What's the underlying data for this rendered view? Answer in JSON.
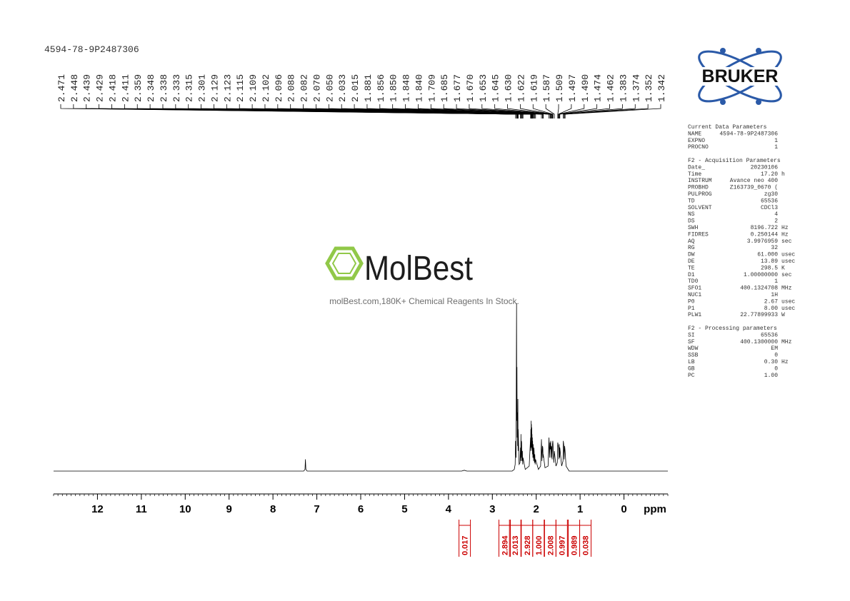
{
  "chart_data": {
    "type": "nmr",
    "title": "4594-78-9P2487306",
    "xlabel": "ppm",
    "xlim": [
      13,
      -1
    ],
    "xticks": [
      12,
      11,
      10,
      9,
      8,
      7,
      6,
      5,
      4,
      3,
      2,
      1,
      0
    ],
    "xminor_step": 0.1,
    "ylim": [
      0,
      100
    ],
    "color": "#000000",
    "series": [
      {
        "x": [
          13,
          7.3,
          7.27,
          7.26,
          7.25,
          7.22,
          3.7,
          3.64,
          3.58,
          2.55,
          2.5,
          2.48,
          2.471,
          2.46,
          2.448,
          2.443,
          2.439,
          2.434,
          2.429,
          2.424,
          2.418,
          2.414,
          2.411,
          2.39,
          2.37,
          2.359,
          2.353,
          2.348,
          2.343,
          2.338,
          2.333,
          2.325,
          2.315,
          2.308,
          2.301,
          2.25,
          2.16,
          2.129,
          2.126,
          2.123,
          2.119,
          2.115,
          2.112,
          2.109,
          2.105,
          2.102,
          2.099,
          2.096,
          2.092,
          2.088,
          2.085,
          2.082,
          2.076,
          2.07,
          2.06,
          2.05,
          2.04,
          2.033,
          2.024,
          2.015,
          1.95,
          1.9,
          1.881,
          1.87,
          1.856,
          1.85,
          1.848,
          1.844,
          1.84,
          1.8,
          1.73,
          1.709,
          1.697,
          1.685,
          1.677,
          1.67,
          1.662,
          1.653,
          1.645,
          1.638,
          1.63,
          1.622,
          1.619,
          1.6,
          1.587,
          1.55,
          1.52,
          1.509,
          1.497,
          1.49,
          1.482,
          1.474,
          1.468,
          1.462,
          1.42,
          1.39,
          1.383,
          1.374,
          1.363,
          1.352,
          1.342,
          1.32,
          1.25,
          -1
        ],
        "values": [
          0,
          0,
          1,
          7,
          1,
          0,
          0,
          0.5,
          0,
          0,
          1,
          4,
          18,
          8,
          100,
          30,
          62,
          20,
          35,
          15,
          43,
          12,
          25,
          4,
          5,
          14,
          6,
          22,
          8,
          18,
          17,
          6,
          12,
          4,
          8,
          1,
          3,
          20,
          12,
          25,
          14,
          30,
          15,
          28,
          14,
          26,
          13,
          22,
          12,
          20,
          10,
          18,
          8,
          16,
          6,
          14,
          5,
          10,
          4,
          7,
          1,
          3,
          19,
          6,
          15,
          14,
          13,
          8,
          10,
          2,
          3,
          20,
          8,
          17,
          13,
          18,
          8,
          15,
          14,
          7,
          16,
          18,
          17,
          5,
          12,
          3,
          5,
          17,
          15,
          14,
          7,
          16,
          8,
          14,
          3,
          6,
          18,
          16,
          7,
          15,
          12,
          3,
          0,
          0
        ]
      }
    ],
    "peaks": [
      2.471,
      2.448,
      2.439,
      2.429,
      2.418,
      2.411,
      2.359,
      2.348,
      2.338,
      2.333,
      2.315,
      2.301,
      2.129,
      2.123,
      2.115,
      2.109,
      2.102,
      2.096,
      2.088,
      2.082,
      {
        "value": 2.07,
        "label": "2.070"
      },
      {
        "value": 2.05,
        "label": "2.050"
      },
      2.033,
      2.015,
      1.881,
      1.856,
      {
        "value": 1.85,
        "label": "1.850"
      },
      1.848,
      {
        "value": 1.84,
        "label": "1.840"
      },
      1.709,
      1.685,
      1.677,
      {
        "value": 1.67,
        "label": "1.670"
      },
      1.653,
      1.645,
      {
        "value": 1.63,
        "label": "1.630"
      },
      1.622,
      1.619,
      1.587,
      1.509,
      1.497,
      {
        "value": 1.49,
        "label": "1.490"
      },
      1.474,
      1.462,
      1.383,
      1.374,
      1.352,
      1.342
    ],
    "integrals": {
      "color": "#cc0000",
      "x": [
        3.63,
        2.72,
        2.48,
        2.21,
        1.95,
        1.68,
        1.42,
        1.14,
        0.88
      ],
      "values": [
        0.017,
        2.894,
        2.013,
        2.928,
        1,
        2.008,
        0.997,
        0.989,
        0.038
      ],
      "value_labels": [
        "0.017",
        "2.894",
        "2.013",
        "2.928",
        "1.000",
        "2.008",
        "0.997",
        "0.989",
        "0.038"
      ]
    }
  },
  "logo": "BRUKER",
  "watermark": {
    "brand": "MolBest",
    "tagline": "molBest.com,180K+ Chemical Reagents In Stock."
  },
  "parameters": {
    "sections": [
      {
        "heading": "Current Data Parameters",
        "rows": [
          [
            "NAME",
            "4594-78-9P2487306"
          ],
          [
            "EXPNO",
            "1"
          ],
          [
            "PROCNO",
            "1"
          ]
        ]
      },
      {
        "heading": "F2 - Acquisition Parameters",
        "rows": [
          [
            "Date_",
            "20230106"
          ],
          [
            "Time",
            "17.20",
            "h"
          ],
          [
            "INSTRUM",
            "Avance neo 400"
          ],
          [
            "PROBHD",
            "Z163739_0670 ("
          ],
          [
            "PULPROG",
            "zg30"
          ],
          [
            "TD",
            "65536"
          ],
          [
            "SOLVENT",
            "CDCl3"
          ],
          [
            "NS",
            "4"
          ],
          [
            "DS",
            "2"
          ],
          [
            "SWH",
            "8196.722",
            "Hz"
          ],
          [
            "FIDRES",
            "0.250144",
            "Hz"
          ],
          [
            "AQ",
            "3.9976959",
            "sec"
          ],
          [
            "RG",
            "32"
          ],
          [
            "DW",
            "61.000",
            "usec"
          ],
          [
            "DE",
            "13.89",
            "usec"
          ],
          [
            "TE",
            "298.5",
            "K"
          ],
          [
            "D1",
            "1.00000000",
            "sec"
          ],
          [
            "TD0",
            "1"
          ],
          [
            "SFO1",
            "400.1324708",
            "MHz"
          ],
          [
            "NUC1",
            "1H"
          ],
          [
            "P0",
            "2.67",
            "usec"
          ],
          [
            "P1",
            "8.00",
            "usec"
          ],
          [
            "PLW1",
            "22.77899933",
            "W"
          ]
        ]
      },
      {
        "heading": "F2 - Processing parameters",
        "rows": [
          [
            "SI",
            "65536"
          ],
          [
            "SF",
            "400.1300000",
            "MHz"
          ],
          [
            "WDW",
            "EM"
          ],
          [
            "SSB",
            "0"
          ],
          [
            "LB",
            "0.30",
            "Hz"
          ],
          [
            "GB",
            "0"
          ],
          [
            "PC",
            "1.00"
          ]
        ]
      }
    ]
  }
}
